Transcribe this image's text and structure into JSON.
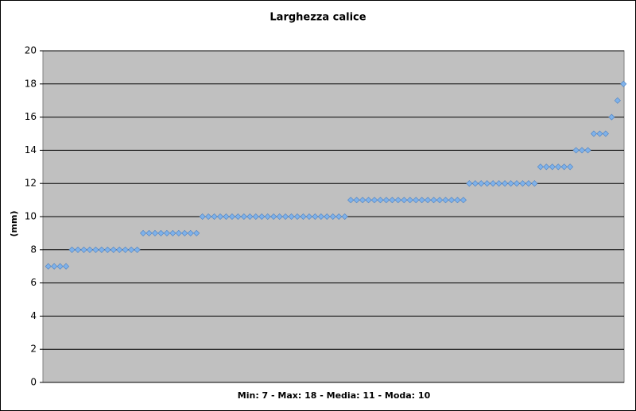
{
  "chart_data": {
    "type": "scatter",
    "title": "Larghezza calice",
    "x_label": "Min: 7 - Max: 18 - Media: 11 - Moda: 10",
    "y_label": "(mm)",
    "values": [
      7,
      7,
      7,
      7,
      8,
      8,
      8,
      8,
      8,
      8,
      8,
      8,
      8,
      8,
      8,
      8,
      9,
      9,
      9,
      9,
      9,
      9,
      9,
      9,
      9,
      9,
      10,
      10,
      10,
      10,
      10,
      10,
      10,
      10,
      10,
      10,
      10,
      10,
      10,
      10,
      10,
      10,
      10,
      10,
      10,
      10,
      10,
      10,
      10,
      10,
      10,
      11,
      11,
      11,
      11,
      11,
      11,
      11,
      11,
      11,
      11,
      11,
      11,
      11,
      11,
      11,
      11,
      11,
      11,
      11,
      11,
      12,
      12,
      12,
      12,
      12,
      12,
      12,
      12,
      12,
      12,
      12,
      12,
      13,
      13,
      13,
      13,
      13,
      13,
      14,
      14,
      14,
      15,
      15,
      15,
      16,
      17,
      18
    ],
    "color": "#7fb2ea",
    "ylim": [
      0,
      20
    ],
    "yticks": [
      0,
      2,
      4,
      6,
      8,
      10,
      12,
      14,
      16,
      18,
      20
    ],
    "grid": true
  }
}
